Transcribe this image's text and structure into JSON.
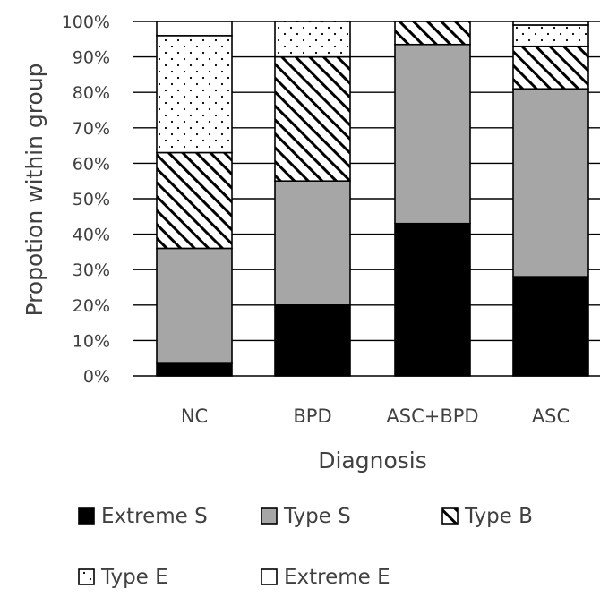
{
  "chart_data": {
    "type": "bar",
    "stacked": true,
    "xlabel": "Diagnosis",
    "ylabel": "Propotion within group",
    "ylim": [
      0,
      100
    ],
    "yticks": [
      "0%",
      "10%",
      "20%",
      "30%",
      "40%",
      "50%",
      "60%",
      "70%",
      "80%",
      "90%",
      "100%"
    ],
    "grid": true,
    "legend_position": "bottom",
    "categories": [
      "NC",
      "BPD",
      "ASC+BPD",
      "ASC"
    ],
    "series": [
      {
        "name": "Extreme S",
        "values": [
          3.5,
          20,
          43,
          28
        ],
        "pattern": "solid-black"
      },
      {
        "name": "Type S",
        "values": [
          32.5,
          35,
          50.5,
          53
        ],
        "pattern": "solid-gray"
      },
      {
        "name": "Type B",
        "values": [
          27,
          35,
          6.5,
          12
        ],
        "pattern": "diagonal-hatch"
      },
      {
        "name": "Type E",
        "values": [
          33,
          10,
          0,
          6
        ],
        "pattern": "dots"
      },
      {
        "name": "Extreme E",
        "values": [
          4,
          0,
          0,
          1
        ],
        "pattern": "white"
      }
    ],
    "colors": {
      "extreme_s": "#000000",
      "type_s": "#a6a6a6",
      "white": "#ffffff",
      "stroke": "#000000",
      "text": "#404040"
    }
  }
}
